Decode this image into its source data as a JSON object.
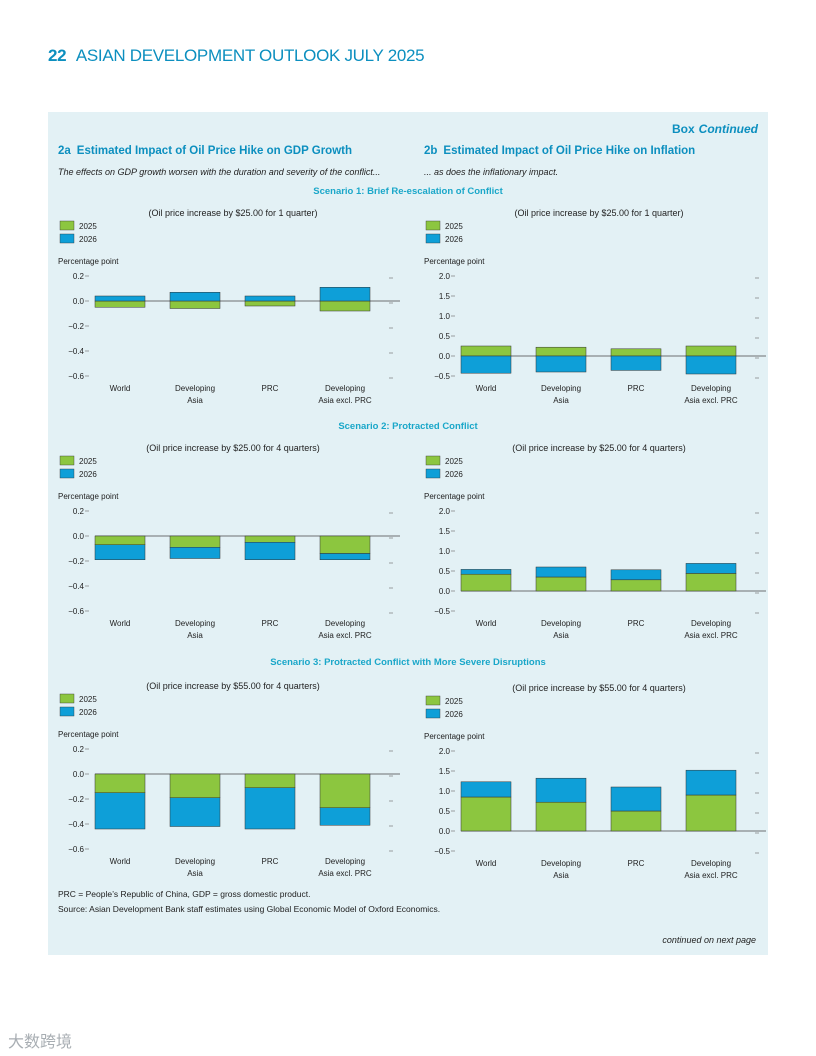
{
  "page_header": {
    "number": "22",
    "title": "ASIAN DEVELOPMENT OUTLOOK JULY 2025"
  },
  "box_label": {
    "prefix": "Box",
    "suffix": "Continued"
  },
  "panels": {
    "a": {
      "num": "2a",
      "title": "Estimated Impact of Oil Price Hike on GDP Growth",
      "subtitle": "The effects on GDP growth worsen with the duration and severity of the conflict..."
    },
    "b": {
      "num": "2b",
      "title": "Estimated Impact of Oil Price Hike on Inflation",
      "subtitle": "... as does the inflationary impact."
    }
  },
  "scenarios": [
    "Scenario 1: Brief Re-escalation of Conflict",
    "Scenario 2: Protracted Conflict",
    "Scenario 3: Protracted Conflict with More Severe Disruptions"
  ],
  "colors": {
    "y2025": "#8cc63f",
    "y2026": "#0e9fd8",
    "accent": "#0c8fbf"
  },
  "chart_data": [
    {
      "id": "s1a",
      "type": "bar",
      "subtitle": "(Oil price increase by $25.00 for 1 quarter)",
      "ylabel": "Percentage point",
      "ylim": [
        -0.6,
        0.2
      ],
      "ticks": [
        0.2,
        0.0,
        -0.2,
        -0.4,
        -0.6
      ],
      "tick_labels": [
        "0.2",
        "0.0",
        "−0.2",
        "−0.4",
        "−0.6"
      ],
      "categories": [
        "World",
        "Developing\nAsia",
        "PRC",
        "Developing\nAsia excl. PRC"
      ],
      "series": [
        {
          "name": "2025",
          "values": [
            -0.05,
            -0.06,
            -0.04,
            -0.08
          ]
        },
        {
          "name": "2026",
          "values": [
            0.04,
            0.07,
            0.04,
            0.11
          ]
        }
      ]
    },
    {
      "id": "s1b",
      "type": "bar",
      "subtitle": "(Oil price increase by $25.00 for 1 quarter)",
      "ylabel": "Percentage point",
      "ylim": [
        -0.5,
        2.0
      ],
      "ticks": [
        2.0,
        1.5,
        1.0,
        0.5,
        0.0,
        -0.5
      ],
      "tick_labels": [
        "2.0",
        "1.5",
        "1.0",
        "0.5",
        "0.0",
        "−0.5"
      ],
      "categories": [
        "World",
        "Developing\nAsia",
        "PRC",
        "Developing\nAsia excl. PRC"
      ],
      "series": [
        {
          "name": "2025",
          "values": [
            0.25,
            0.22,
            0.18,
            0.25
          ]
        },
        {
          "name": "2026",
          "values": [
            -0.43,
            -0.4,
            -0.36,
            -0.45
          ]
        }
      ]
    },
    {
      "id": "s2a",
      "type": "bar",
      "subtitle": "(Oil price increase by $25.00 for 4 quarters)",
      "ylabel": "Percentage point",
      "ylim": [
        -0.6,
        0.2
      ],
      "ticks": [
        0.2,
        0.0,
        -0.2,
        -0.4,
        -0.6
      ],
      "tick_labels": [
        "0.2",
        "0.0",
        "−0.2",
        "−0.4",
        "−0.6"
      ],
      "categories": [
        "World",
        "Developing\nAsia",
        "PRC",
        "Developing\nAsia excl. PRC"
      ],
      "series": [
        {
          "name": "2025",
          "values": [
            -0.07,
            -0.09,
            -0.05,
            -0.14
          ]
        },
        {
          "name": "2026",
          "values": [
            -0.12,
            -0.09,
            -0.14,
            -0.05
          ]
        }
      ]
    },
    {
      "id": "s2b",
      "type": "bar",
      "subtitle": "(Oil price increase by $25.00 for 4 quarters)",
      "ylabel": "Percentage point",
      "ylim": [
        -0.5,
        2.0
      ],
      "ticks": [
        2.0,
        1.5,
        1.0,
        0.5,
        0.0,
        -0.5
      ],
      "tick_labels": [
        "2.0",
        "1.5",
        "1.0",
        "0.5",
        "0.0",
        "−0.5"
      ],
      "categories": [
        "World",
        "Developing\nAsia",
        "PRC",
        "Developing\nAsia excl. PRC"
      ],
      "series": [
        {
          "name": "2025",
          "values": [
            0.42,
            0.35,
            0.28,
            0.44
          ]
        },
        {
          "name": "2026",
          "values": [
            0.12,
            0.25,
            0.25,
            0.25
          ]
        }
      ]
    },
    {
      "id": "s3a",
      "type": "bar",
      "subtitle": "(Oil price increase by $55.00 for 4 quarters)",
      "ylabel": "Percentage point",
      "ylim": [
        -0.6,
        0.2
      ],
      "ticks": [
        0.2,
        0.0,
        -0.2,
        -0.4,
        -0.6
      ],
      "tick_labels": [
        "0.2",
        "0.0",
        "−0.2",
        "−0.4",
        "−0.6"
      ],
      "categories": [
        "World",
        "Developing\nAsia",
        "PRC",
        "Developing\nAsia excl. PRC"
      ],
      "series": [
        {
          "name": "2025",
          "values": [
            -0.15,
            -0.19,
            -0.11,
            -0.27
          ]
        },
        {
          "name": "2026",
          "values": [
            -0.29,
            -0.23,
            -0.33,
            -0.14
          ]
        }
      ]
    },
    {
      "id": "s3b",
      "type": "bar",
      "subtitle": "(Oil price increase by $55.00 for 4 quarters)",
      "ylabel": "Percentage point",
      "ylim": [
        -0.5,
        2.0
      ],
      "ticks": [
        2.0,
        1.5,
        1.0,
        0.5,
        0.0,
        -0.5
      ],
      "tick_labels": [
        "2.0",
        "1.5",
        "1.0",
        "0.5",
        "0.0",
        "−0.5"
      ],
      "categories": [
        "World",
        "Developing\nAsia",
        "PRC",
        "Developing\nAsia excl. PRC"
      ],
      "series": [
        {
          "name": "2025",
          "values": [
            0.85,
            0.72,
            0.5,
            0.9
          ]
        },
        {
          "name": "2026",
          "values": [
            0.38,
            0.6,
            0.6,
            0.62
          ]
        }
      ]
    }
  ],
  "notes": {
    "abbrev": "PRC = People’s Republic of China, GDP = gross domestic product.",
    "source": "Source: Asian Development Bank staff estimates using Global Economic Model of Oxford Economics.",
    "continued": "continued on next page"
  },
  "watermark": "大数跨境"
}
